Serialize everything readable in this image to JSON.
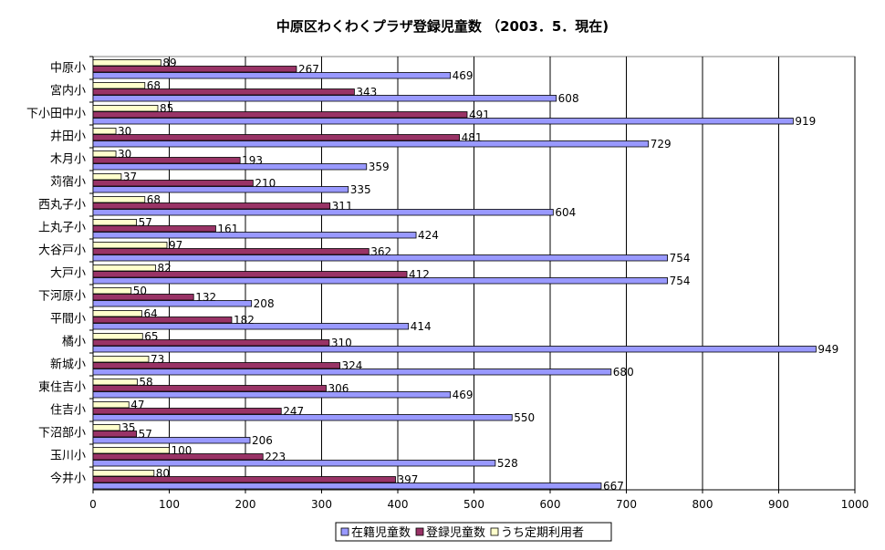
{
  "chart_data": {
    "type": "bar",
    "orientation": "horizontal",
    "title": "中原区わくわくプラザ登録児童数 （2003．5．現在)",
    "categories": [
      "中原小",
      "宮内小",
      "下小田中小",
      "井田小",
      "木月小",
      "苅宿小",
      "西丸子小",
      "上丸子小",
      "大谷戸小",
      "大戸小",
      "下河原小",
      "平間小",
      "橘小",
      "新城小",
      "東住吉小",
      "住吉小",
      "下沼部小",
      "玉川小",
      "今井小"
    ],
    "series": [
      {
        "name": "うち定期利用者",
        "color": "#FFFFCC",
        "values": [
          89,
          68,
          85,
          30,
          30,
          37,
          68,
          57,
          97,
          82,
          50,
          64,
          65,
          73,
          58,
          47,
          35,
          100,
          80
        ]
      },
      {
        "name": "登録児童数",
        "color": "#993366",
        "values": [
          267,
          343,
          491,
          481,
          193,
          210,
          311,
          161,
          362,
          412,
          132,
          182,
          310,
          324,
          306,
          247,
          57,
          223,
          397
        ]
      },
      {
        "name": "在籍児童数",
        "color": "#9999FF",
        "values": [
          469,
          608,
          919,
          729,
          359,
          335,
          604,
          424,
          754,
          754,
          208,
          414,
          949,
          680,
          469,
          550,
          206,
          528,
          667
        ]
      }
    ],
    "xlim": [
      0,
      1000
    ],
    "xticks": [
      0,
      100,
      200,
      300,
      400,
      500,
      600,
      700,
      800,
      900,
      1000
    ],
    "grid": true,
    "legend_position": "bottom",
    "legend_order": [
      "在籍児童数",
      "登録児童数",
      "うち定期利用者"
    ]
  }
}
